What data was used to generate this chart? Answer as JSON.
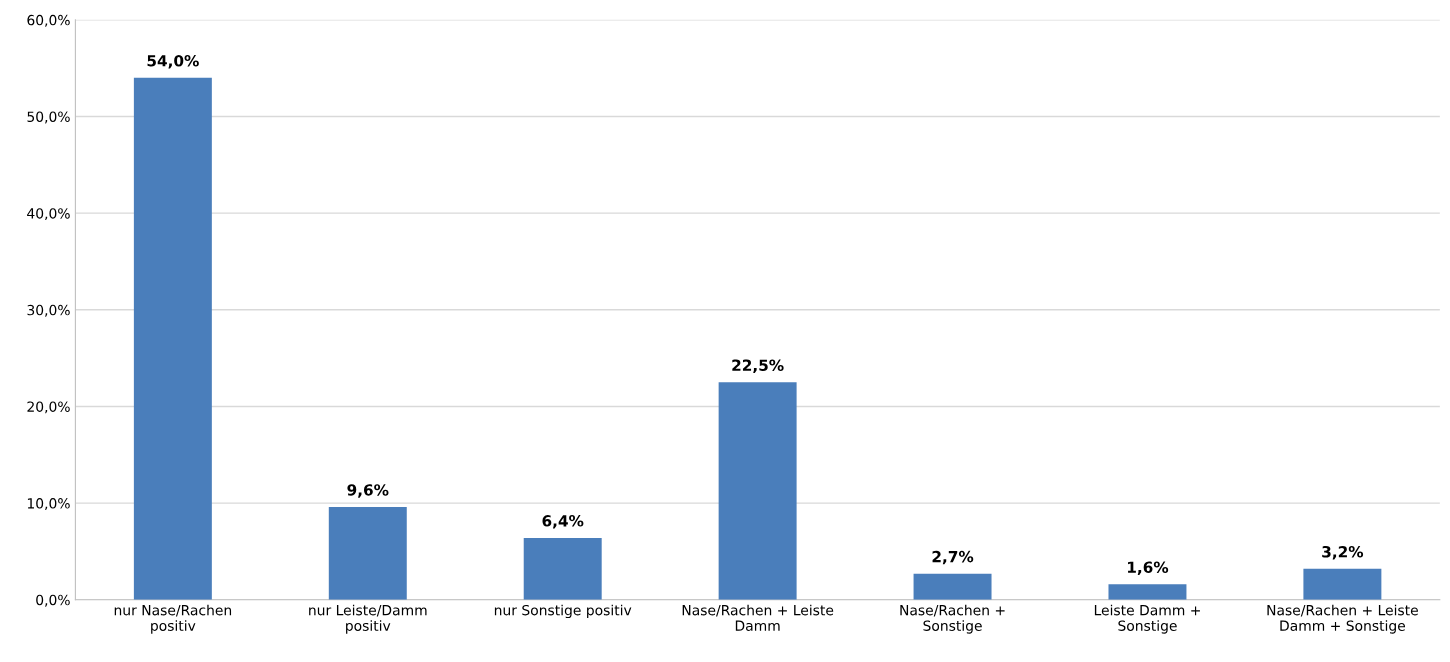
{
  "chart_data": {
    "type": "bar",
    "categories": [
      "nur Nase/Rachen\npositiv",
      "nur Leiste/Damm\npositiv",
      "nur Sonstige positiv",
      "Nase/Rachen + Leiste\nDamm",
      "Nase/Rachen +\nSonstige",
      "Leiste Damm +\nSonstige",
      "Nase/Rachen + Leiste\nDamm + Sonstige"
    ],
    "values": [
      54.0,
      9.6,
      6.4,
      22.5,
      2.7,
      1.6,
      3.2
    ],
    "value_labels": [
      "54,0%",
      "9,6%",
      "6,4%",
      "22,5%",
      "2,7%",
      "1,6%",
      "3,2%"
    ],
    "color": "#4a7ebb",
    "ylim": [
      0,
      60
    ],
    "yticks": [
      {
        "value": 0,
        "label": "0,0%"
      },
      {
        "value": 10,
        "label": "10,0%"
      },
      {
        "value": 20,
        "label": "20,0%"
      },
      {
        "value": 30,
        "label": "30,0%"
      },
      {
        "value": 40,
        "label": "40,0%"
      },
      {
        "value": 50,
        "label": "50,0%"
      },
      {
        "value": 60,
        "label": "60,0%"
      }
    ],
    "grid": "y"
  }
}
